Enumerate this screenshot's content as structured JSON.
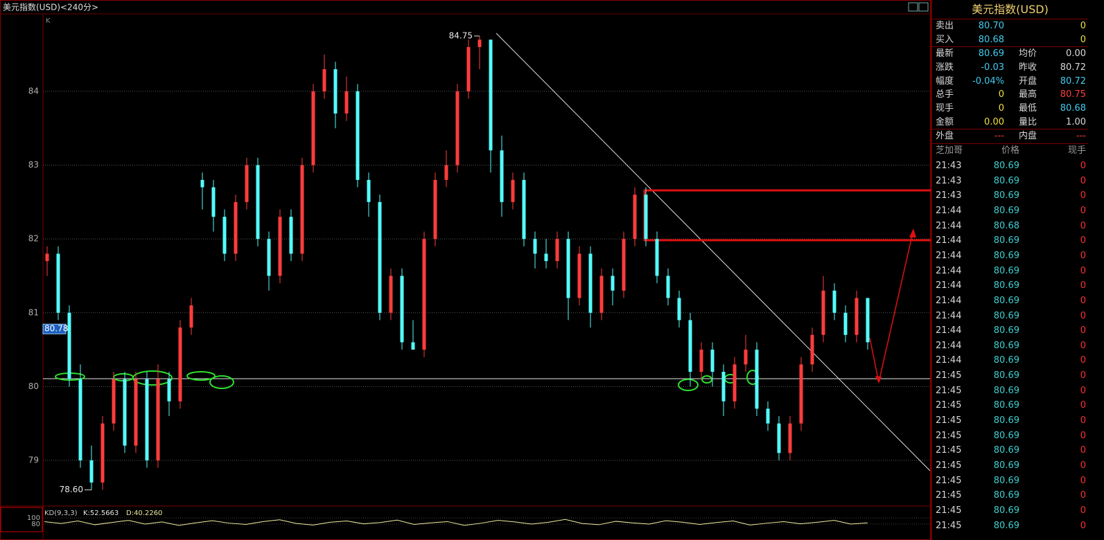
{
  "header": {
    "title": "美元指数(USD)<240分>",
    "panel_label": "K"
  },
  "chart_data": [
    {
      "type": "candlestick",
      "up_color": "#ff3c3c",
      "down_color": "#54fcfc",
      "ylim": [
        78.39,
        85.05
      ],
      "yticks": [
        79,
        80,
        81,
        82,
        83,
        84
      ],
      "grid": true,
      "open": [
        81.7,
        81.8,
        81.0,
        80.1,
        79.0,
        78.7,
        79.5,
        80.1,
        79.2,
        80.1,
        79.0,
        80.1,
        79.8,
        80.8,
        82.8,
        82.7,
        82.3,
        81.8,
        82.5,
        83.0,
        82.0,
        81.5,
        82.3,
        81.8,
        83.0,
        84.0,
        84.3,
        83.7,
        84.0,
        82.8,
        82.5,
        81.0,
        81.5,
        80.6,
        80.5,
        82.0,
        82.8,
        83.0,
        84.0,
        84.6,
        84.7,
        83.2,
        82.5,
        82.8,
        82.0,
        81.8,
        81.7,
        82.0,
        81.2,
        81.8,
        81.0,
        81.5,
        81.3,
        82.0,
        82.6,
        82.0,
        81.5,
        81.2,
        80.9,
        80.2,
        80.5,
        80.2,
        79.8,
        80.3,
        80.5,
        79.7,
        79.5,
        79.1,
        79.5,
        80.3,
        80.7,
        81.3,
        81.0,
        80.7,
        81.2
      ],
      "high": [
        81.9,
        81.9,
        81.1,
        80.3,
        79.2,
        79.6,
        80.2,
        80.2,
        80.2,
        80.2,
        80.3,
        80.2,
        80.9,
        81.2,
        82.9,
        82.8,
        82.4,
        82.6,
        83.1,
        83.1,
        82.1,
        82.4,
        82.4,
        83.1,
        84.1,
        84.5,
        84.4,
        84.2,
        84.1,
        82.9,
        82.6,
        81.6,
        81.6,
        80.9,
        82.1,
        82.9,
        83.2,
        84.1,
        84.7,
        84.75,
        84.7,
        83.4,
        82.9,
        82.9,
        82.1,
        82.0,
        82.1,
        82.1,
        81.9,
        81.9,
        81.6,
        81.6,
        82.1,
        82.7,
        82.7,
        82.1,
        81.6,
        81.3,
        81.0,
        80.6,
        80.6,
        80.3,
        80.4,
        80.7,
        80.6,
        79.8,
        79.6,
        79.6,
        80.4,
        80.8,
        81.5,
        81.4,
        81.1,
        81.3,
        81.2
      ],
      "low": [
        81.5,
        80.9,
        80.0,
        78.9,
        78.6,
        78.6,
        79.4,
        79.1,
        79.1,
        78.9,
        78.9,
        79.6,
        79.7,
        80.7,
        82.4,
        82.1,
        81.7,
        81.7,
        82.4,
        81.9,
        81.3,
        81.4,
        81.7,
        81.7,
        82.9,
        83.9,
        83.5,
        83.6,
        82.7,
        82.3,
        80.9,
        80.9,
        80.5,
        80.5,
        80.4,
        81.9,
        82.7,
        82.9,
        83.9,
        84.3,
        82.9,
        82.3,
        82.4,
        81.9,
        81.6,
        81.6,
        81.6,
        80.9,
        81.1,
        80.8,
        80.9,
        81.1,
        81.2,
        81.9,
        81.9,
        81.4,
        81.1,
        80.8,
        80.0,
        80.1,
        80.0,
        79.6,
        79.7,
        80.2,
        79.6,
        79.4,
        79.0,
        79.0,
        79.4,
        80.2,
        80.6,
        80.9,
        80.6,
        80.6,
        80.5
      ],
      "close": [
        81.8,
        81.0,
        80.1,
        79.0,
        78.7,
        79.5,
        80.1,
        79.2,
        80.1,
        79.0,
        80.1,
        79.8,
        80.8,
        81.1,
        82.7,
        82.3,
        81.8,
        82.5,
        83.0,
        82.0,
        81.5,
        82.3,
        81.8,
        83.0,
        84.0,
        84.3,
        83.7,
        84.0,
        82.8,
        82.5,
        81.0,
        81.5,
        80.6,
        80.5,
        82.0,
        82.8,
        83.0,
        84.0,
        84.6,
        84.7,
        83.2,
        82.5,
        82.8,
        82.0,
        81.8,
        81.7,
        82.0,
        81.2,
        81.8,
        81.0,
        81.5,
        81.3,
        82.0,
        82.6,
        82.0,
        81.5,
        81.2,
        80.9,
        80.2,
        80.5,
        80.2,
        79.8,
        80.3,
        80.5,
        79.7,
        79.5,
        79.1,
        79.5,
        80.3,
        80.7,
        81.3,
        81.0,
        80.7,
        81.2,
        80.6
      ],
      "annotations": [
        {
          "value": 84.75,
          "label": "84.75"
        },
        {
          "value": 78.6,
          "label": "78.60"
        }
      ],
      "current_price": {
        "value": 80.78,
        "label": "80.78"
      }
    },
    {
      "type": "line",
      "title": "KD(9,3,3)",
      "k_text": "K:52.5663",
      "d_text": "D:40.2260",
      "ylim": [
        60,
        118
      ],
      "yticks": [
        100,
        80
      ],
      "series": [
        {
          "color": "#f0f0a0",
          "values": [
            88,
            82,
            90,
            78,
            85,
            92,
            80,
            87,
            76,
            84,
            91,
            83,
            79,
            88,
            94,
            82,
            77,
            86,
            90,
            81,
            85,
            93,
            79,
            84,
            88,
            76,
            83,
            92,
            87,
            80,
            86,
            95,
            82,
            78,
            89,
            84,
            80,
            91,
            86,
            79,
            85,
            90,
            77,
            83,
            88,
            81,
            86,
            92,
            80,
            84
          ]
        }
      ]
    }
  ],
  "quote_panel": {
    "title": "美元指数(USD)",
    "order_book": [
      {
        "label": "卖出",
        "price": "80.70",
        "volume": "0"
      },
      {
        "label": "买入",
        "price": "80.68",
        "volume": "0"
      }
    ],
    "stats": [
      [
        {
          "label": "最新",
          "value": "80.69",
          "color": "#44ccee"
        },
        {
          "label": "均价",
          "value": "0.00",
          "color": "#d8d8d8"
        }
      ],
      [
        {
          "label": "涨跌",
          "value": "-0.03",
          "color": "#44ccee"
        },
        {
          "label": "昨收",
          "value": "80.72",
          "color": "#d8d8d8"
        }
      ],
      [
        {
          "label": "幅度",
          "value": "-0.04%",
          "color": "#44ccee"
        },
        {
          "label": "开盘",
          "value": "80.72",
          "color": "#44ccee"
        }
      ],
      [
        {
          "label": "总手",
          "value": "0",
          "color": "#f0e040"
        },
        {
          "label": "最高",
          "value": "80.75",
          "color": "#ff4040"
        }
      ],
      [
        {
          "label": "现手",
          "value": "0",
          "color": "#f0e040"
        },
        {
          "label": "最低",
          "value": "80.68",
          "color": "#44ccee"
        }
      ],
      [
        {
          "label": "金额",
          "value": "0.00",
          "color": "#f0e040"
        },
        {
          "label": "量比",
          "value": "1.00",
          "color": "#d8d8d8"
        }
      ]
    ],
    "flow": [
      {
        "label": "外盘",
        "value": "---"
      },
      {
        "label": "内盘",
        "value": "---"
      }
    ],
    "trades_header": [
      "芝加哥",
      "价格",
      "现手"
    ],
    "trades": [
      [
        "21:43",
        "80.69",
        "0"
      ],
      [
        "21:43",
        "80.69",
        "0"
      ],
      [
        "21:43",
        "80.69",
        "0"
      ],
      [
        "21:44",
        "80.69",
        "0"
      ],
      [
        "21:44",
        "80.68",
        "0"
      ],
      [
        "21:44",
        "80.69",
        "0"
      ],
      [
        "21:44",
        "80.69",
        "0"
      ],
      [
        "21:44",
        "80.69",
        "0"
      ],
      [
        "21:44",
        "80.69",
        "0"
      ],
      [
        "21:44",
        "80.69",
        "0"
      ],
      [
        "21:44",
        "80.69",
        "0"
      ],
      [
        "21:44",
        "80.69",
        "0"
      ],
      [
        "21:44",
        "80.69",
        "0"
      ],
      [
        "21:44",
        "80.69",
        "0"
      ],
      [
        "21:45",
        "80.69",
        "0"
      ],
      [
        "21:45",
        "80.69",
        "0"
      ],
      [
        "21:45",
        "80.69",
        "0"
      ],
      [
        "21:45",
        "80.69",
        "0"
      ],
      [
        "21:45",
        "80.69",
        "0"
      ],
      [
        "21:45",
        "80.69",
        "0"
      ],
      [
        "21:45",
        "80.69",
        "0"
      ],
      [
        "21:45",
        "80.69",
        "0"
      ],
      [
        "21:45",
        "80.69",
        "0"
      ],
      [
        "21:45",
        "80.69",
        "0"
      ],
      [
        "21:45",
        "80.69",
        "0"
      ]
    ]
  }
}
